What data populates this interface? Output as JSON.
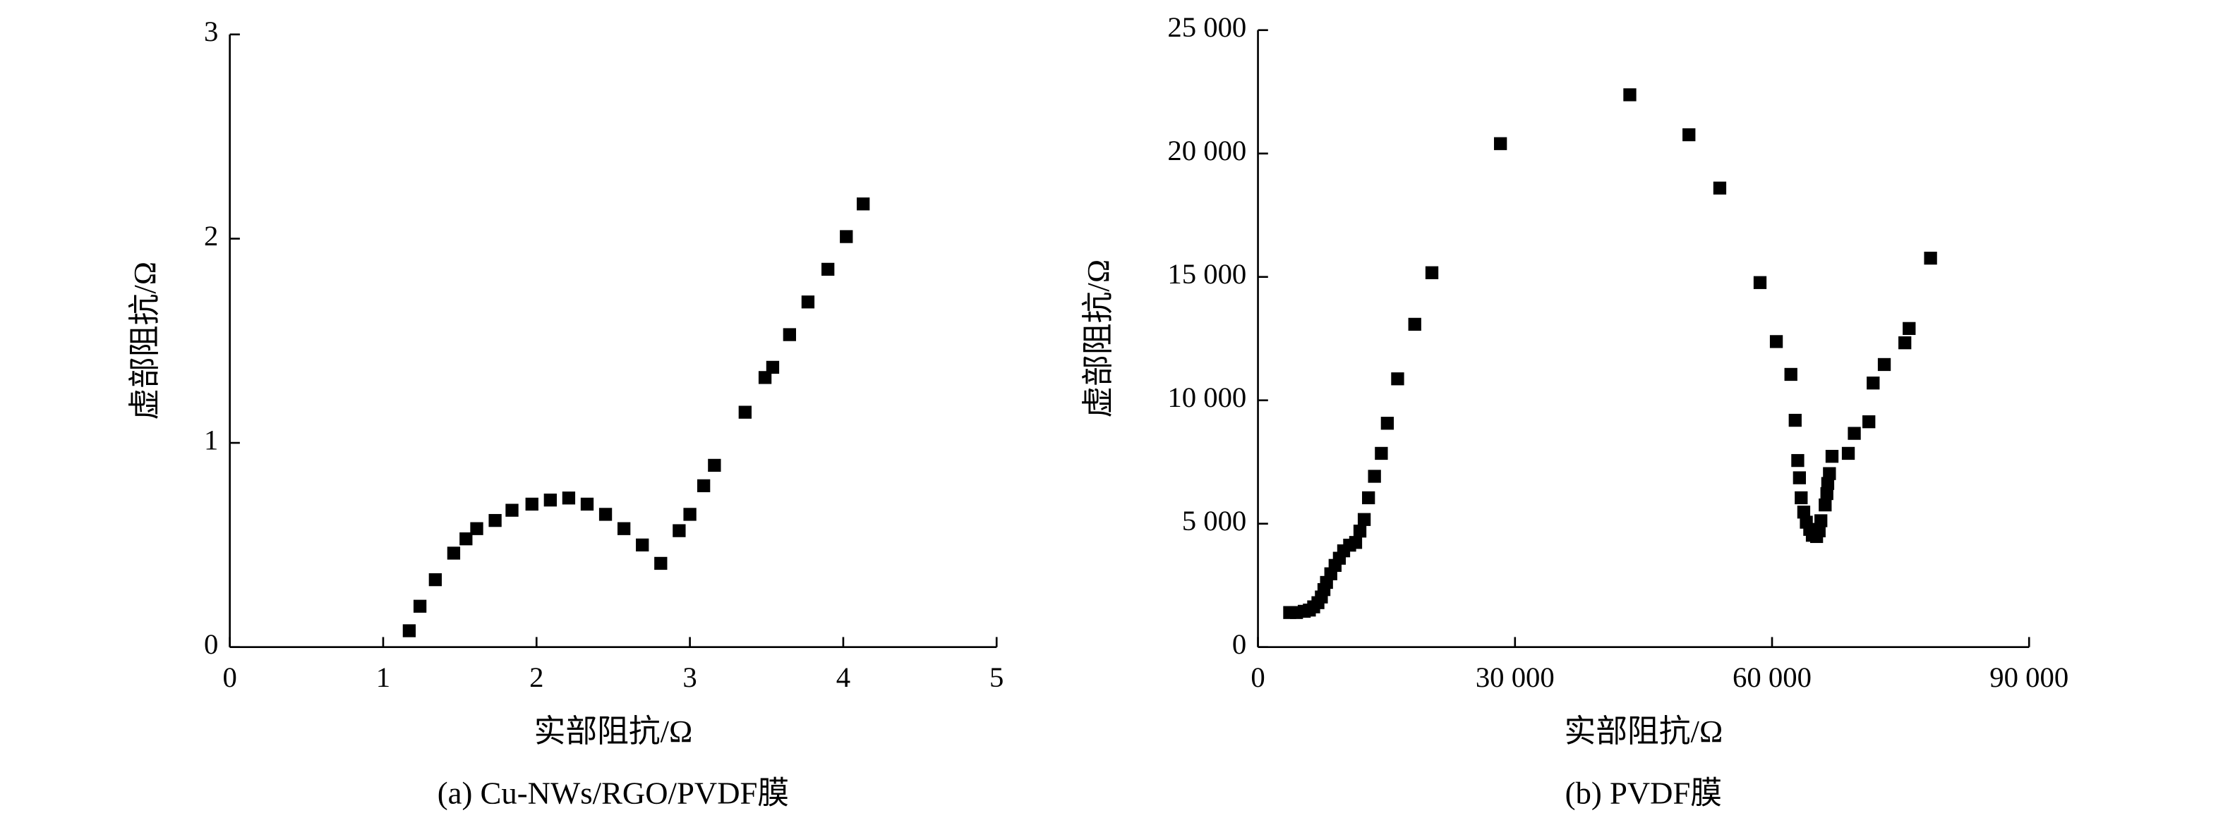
{
  "chart_data": [
    {
      "type": "scatter",
      "xlabel": "实部阻抗/Ω",
      "ylabel": "虚部阻抗/Ω",
      "caption": "(a) Cu-NWs/RGO/PVDF膜",
      "color": "#000000",
      "xlim": [
        0,
        5
      ],
      "ylim": [
        0,
        3
      ],
      "xticks": [
        0,
        1,
        2,
        3,
        4,
        5
      ],
      "yticks": [
        0,
        1,
        2,
        3
      ],
      "series": [
        {
          "name": null,
          "color": "#000000",
          "x": [
            1.17,
            1.24,
            1.34,
            1.46,
            1.54,
            1.61,
            1.73,
            1.84,
            1.97,
            2.09,
            2.21,
            2.33,
            2.45,
            2.57,
            2.69,
            2.81,
            2.93,
            3.0,
            3.09,
            3.16,
            3.36,
            3.49,
            3.54,
            3.65,
            3.77,
            3.9,
            4.02,
            4.13
          ],
          "values": [
            0.08,
            0.2,
            0.33,
            0.46,
            0.53,
            0.58,
            0.62,
            0.67,
            0.7,
            0.72,
            0.73,
            0.7,
            0.65,
            0.58,
            0.5,
            0.41,
            0.57,
            0.65,
            0.79,
            0.89,
            1.15,
            1.32,
            1.37,
            1.53,
            1.69,
            1.85,
            2.01,
            2.17
          ]
        }
      ]
    },
    {
      "type": "scatter",
      "xlabel": "实部阻抗/Ω",
      "ylabel": "虚部阻抗/Ω",
      "caption": "(b) PVDF膜",
      "color": "#000000",
      "xlim": [
        0,
        90000
      ],
      "ylim": [
        0,
        25000
      ],
      "xticks": [
        0,
        {
          "value": 30000,
          "label": "30 000"
        },
        {
          "value": 60000,
          "label": "60 000"
        },
        {
          "value": 90000,
          "label": "90 000"
        }
      ],
      "yticks": [
        0,
        {
          "value": 5000,
          "label": "5 000"
        },
        {
          "value": 10000,
          "label": "10 000"
        },
        {
          "value": 15000,
          "label": "15 000"
        },
        {
          "value": 20000,
          "label": "20 000"
        },
        {
          "value": 25000,
          "label": "25 000"
        }
      ],
      "series": [
        {
          "name": null,
          "color": "#000000",
          "x": [
            3700,
            4500,
            5400,
            6000,
            6500,
            7000,
            7400,
            7700,
            8000,
            8500,
            9000,
            9500,
            10000,
            10700,
            11400,
            11900,
            12400,
            12900,
            13600,
            14400,
            15100,
            16300,
            18300,
            20300,
            28300,
            43400,
            50300,
            53900,
            58600,
            60500,
            62200,
            62700,
            63000,
            63200,
            63400,
            63700,
            64000,
            64400,
            64700,
            65200,
            65500,
            65700,
            66200,
            66400,
            66500,
            66700,
            67000,
            68900,
            69600,
            71300,
            71800,
            73100,
            75500,
            76000,
            78500
          ],
          "values": [
            1400,
            1400,
            1450,
            1500,
            1630,
            1800,
            2030,
            2330,
            2620,
            2970,
            3310,
            3600,
            3900,
            4130,
            4240,
            4700,
            5170,
            6050,
            6920,
            7850,
            9070,
            10870,
            13080,
            15170,
            20400,
            22380,
            20760,
            18600,
            14770,
            12380,
            11050,
            9190,
            7560,
            6860,
            6050,
            5470,
            5060,
            4770,
            4530,
            4480,
            4710,
            5120,
            5760,
            6220,
            6630,
            7030,
            7730,
            7850,
            8660,
            9130,
            10700,
            11450,
            12330,
            12910,
            15760
          ]
        }
      ]
    }
  ]
}
